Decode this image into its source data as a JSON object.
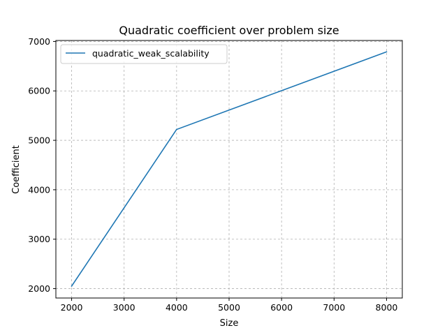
{
  "chart_data": {
    "type": "line",
    "title": "Quadratic coefficient over problem size",
    "xlabel": "Size",
    "ylabel": "Coefficient",
    "xlim": [
      1700,
      8300
    ],
    "ylim": [
      1810,
      7020
    ],
    "xticks": [
      2000,
      3000,
      4000,
      5000,
      6000,
      7000,
      8000
    ],
    "yticks": [
      2000,
      3000,
      4000,
      5000,
      6000,
      7000
    ],
    "grid": true,
    "legend_position": "top-left",
    "series": [
      {
        "name": "quadratic_weak_scalability",
        "color": "#1f77b4",
        "x": [
          2000,
          4000,
          8000
        ],
        "y": [
          2050,
          5220,
          6790
        ]
      }
    ]
  }
}
